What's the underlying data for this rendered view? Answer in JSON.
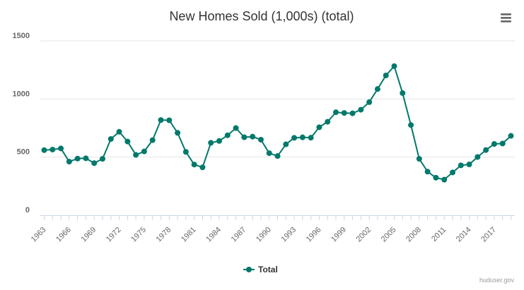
{
  "chart_data": {
    "type": "line",
    "title": "New Homes Sold (1,000s) (total)",
    "xlabel": "",
    "ylabel": "",
    "x": [
      1963,
      1964,
      1965,
      1966,
      1967,
      1968,
      1969,
      1970,
      1971,
      1972,
      1973,
      1974,
      1975,
      1976,
      1977,
      1978,
      1979,
      1980,
      1981,
      1982,
      1983,
      1984,
      1985,
      1986,
      1987,
      1988,
      1989,
      1990,
      1991,
      1992,
      1993,
      1994,
      1995,
      1996,
      1997,
      1998,
      1999,
      2000,
      2001,
      2002,
      2003,
      2004,
      2005,
      2006,
      2007,
      2008,
      2009,
      2010,
      2011,
      2012,
      2013,
      2014,
      2015,
      2016,
      2017,
      2018,
      2019
    ],
    "series": [
      {
        "name": "Total",
        "color": "#00796b",
        "values": [
          560,
          565,
          575,
          461,
          487,
          490,
          448,
          485,
          656,
          718,
          634,
          519,
          549,
          646,
          819,
          817,
          709,
          545,
          436,
          412,
          623,
          639,
          688,
          750,
          671,
          676,
          650,
          534,
          509,
          610,
          666,
          670,
          667,
          757,
          804,
          886,
          880,
          877,
          908,
          973,
          1086,
          1203,
          1283,
          1051,
          776,
          485,
          375,
          323,
          306,
          368,
          429,
          437,
          501,
          561,
          613,
          617,
          683
        ]
      }
    ],
    "ylim": [
      0,
      1500
    ],
    "yticks": [
      "0",
      "500",
      "1000",
      "1500"
    ],
    "xticks": [
      "1963",
      "1966",
      "1969",
      "1972",
      "1975",
      "1978",
      "1981",
      "1984",
      "1987",
      "1990",
      "1993",
      "1996",
      "1999",
      "2002",
      "2005",
      "2008",
      "2011",
      "2014",
      "2017"
    ],
    "grid": true,
    "legend": "bottom-center"
  },
  "credit": "huduser.gov",
  "menu_icon": "hamburger-menu-icon",
  "colors": {
    "series": "#00796b",
    "grid": "#e6e6e6",
    "axis": "#ccd6eb"
  }
}
